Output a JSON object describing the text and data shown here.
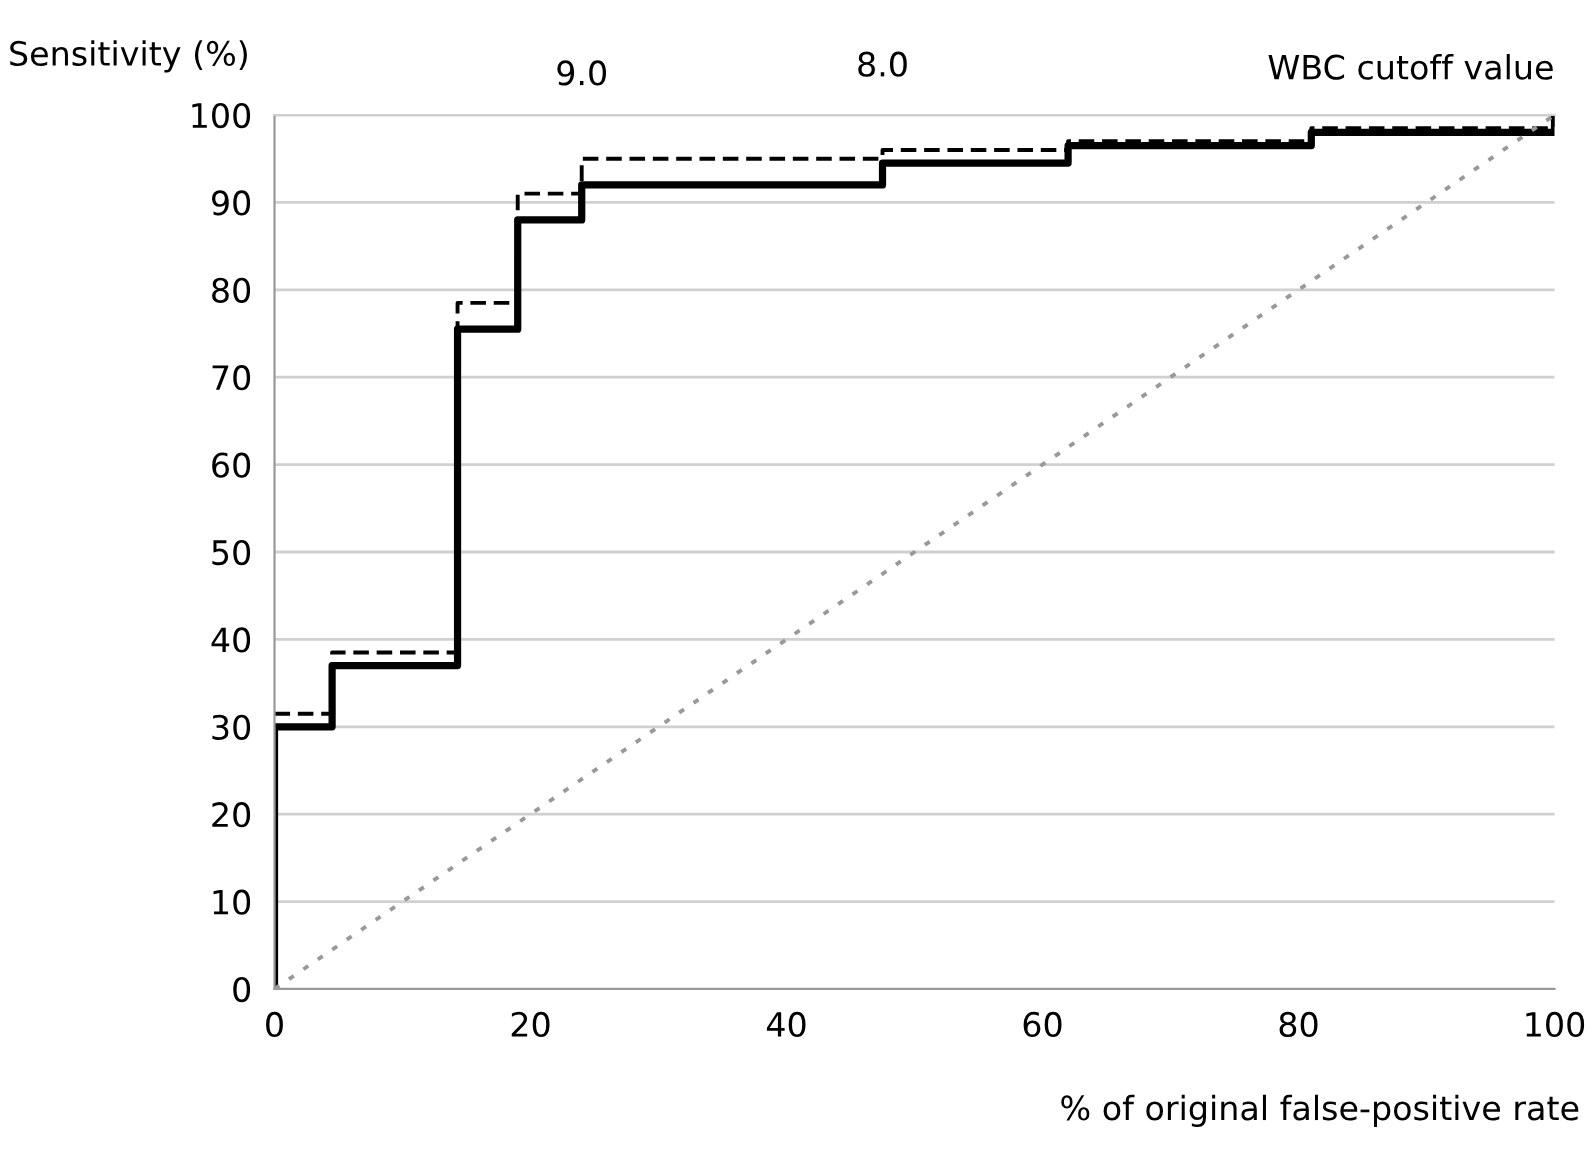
{
  "chart_data": {
    "type": "step",
    "ylabel": "Sensitivity (%)",
    "xlabel": "% of original false-positive rate",
    "annotations": [
      {
        "text": "9.0",
        "x": 24,
        "y": 95
      },
      {
        "text": "8.0",
        "x": 47.5,
        "y": 96
      },
      "WBC cutoff value"
    ],
    "xlim": [
      0,
      100
    ],
    "xticks": [
      0,
      20,
      40,
      60,
      80,
      100
    ],
    "ylim": [
      0,
      100
    ],
    "yticks": [
      0,
      10,
      20,
      30,
      40,
      50,
      60,
      70,
      80,
      90,
      100
    ],
    "grid": "y",
    "legend": false,
    "series": [
      {
        "color": "#000000",
        "line_style": "solid",
        "x": [
          0,
          0,
          4.5,
          14.3,
          19,
          24,
          47.5,
          62,
          81,
          100
        ],
        "values": [
          0,
          30,
          37,
          75.5,
          88,
          92,
          94.5,
          96.5,
          98,
          100
        ]
      },
      {
        "color": "#000000",
        "line_style": "dashed",
        "x": [
          0,
          4.5,
          14.3,
          19,
          24,
          47.5,
          62,
          81,
          100
        ],
        "values": [
          31.5,
          38.5,
          78.5,
          91,
          95,
          96,
          97,
          98.5,
          100
        ]
      },
      {
        "type": "line",
        "color": "#999999",
        "line_style": "dotted",
        "x": [
          0,
          100
        ],
        "values": [
          0,
          100
        ]
      }
    ]
  }
}
